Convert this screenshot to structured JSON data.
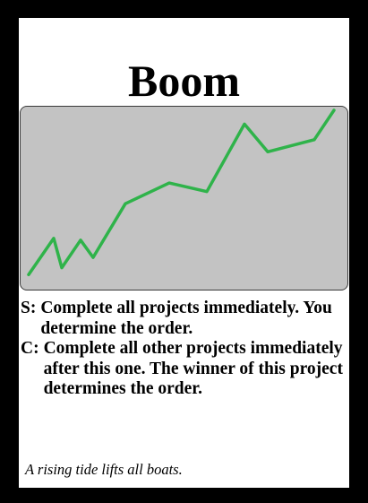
{
  "card": {
    "title": "Boom",
    "art": {
      "line_color": "#2fb34a",
      "background_color": "#c3c3c3",
      "trend": [
        0.05,
        0.26,
        0.09,
        0.25,
        0.15,
        0.46,
        0.58,
        0.53,
        0.92,
        0.76,
        0.83,
        1.0
      ]
    },
    "abilities": [
      {
        "key": "S:",
        "text": "Complete all projects immediately. You determine the order."
      },
      {
        "key": "C:",
        "text": "Complete all other projects immediately after this one. The winner of this project determines the order."
      }
    ],
    "flavor": "A rising tide lifts all boats."
  }
}
